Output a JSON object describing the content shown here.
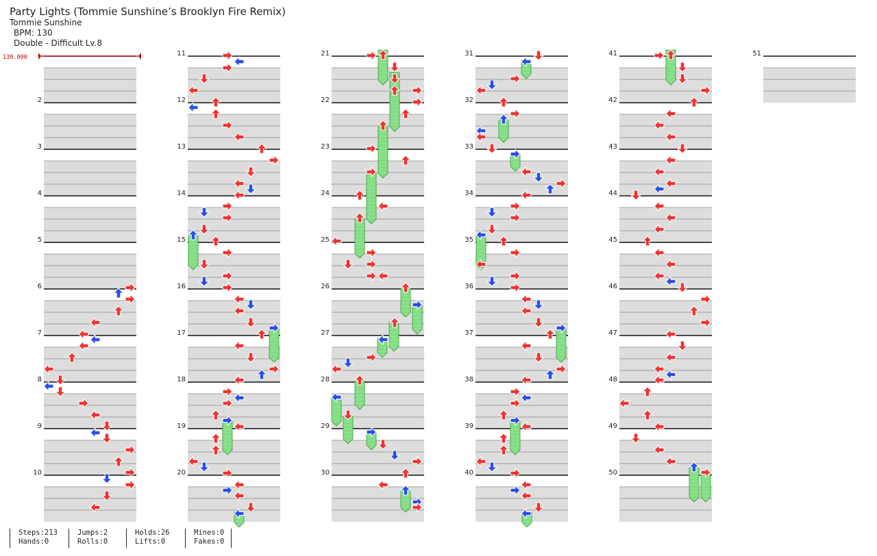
{
  "song": {
    "title": "Party Lights (Tommie Sunshine’s Brooklyn Fire Remix)",
    "artist": "Tommie Sunshine",
    "bpm_text": "BPM: 130",
    "difficulty_text": "Double - Difficult Lv.8"
  },
  "bpm_marker": "130.000",
  "measures": [
    "2",
    "3",
    "4",
    "5",
    "6",
    "7",
    "8",
    "9",
    "10",
    "11",
    "12",
    "13",
    "14",
    "15",
    "16",
    "17",
    "18",
    "19",
    "20",
    "21",
    "22",
    "23",
    "24",
    "25",
    "26",
    "27",
    "28",
    "29",
    "30",
    "31",
    "32",
    "33",
    "34",
    "35",
    "36",
    "37",
    "38",
    "39",
    "40",
    "41",
    "42",
    "43",
    "44",
    "45",
    "46",
    "47",
    "48",
    "49",
    "50",
    "51"
  ],
  "colors": {
    "quarter_arrow": "#ee3333",
    "eighth_arrow": "#2a4ee8",
    "hold_body": "#8ee68e",
    "row_shade": "#dddddd",
    "bpm_marker": "#cc0000"
  },
  "stats": {
    "col1": [
      "Steps:213",
      "Hands:0"
    ],
    "col2": [
      "Jumps:2",
      "Rolls:0"
    ],
    "col3": [
      "Holds:26",
      "Lifts:0"
    ],
    "col4": [
      "Mines:0",
      "Fakes:0"
    ]
  }
}
